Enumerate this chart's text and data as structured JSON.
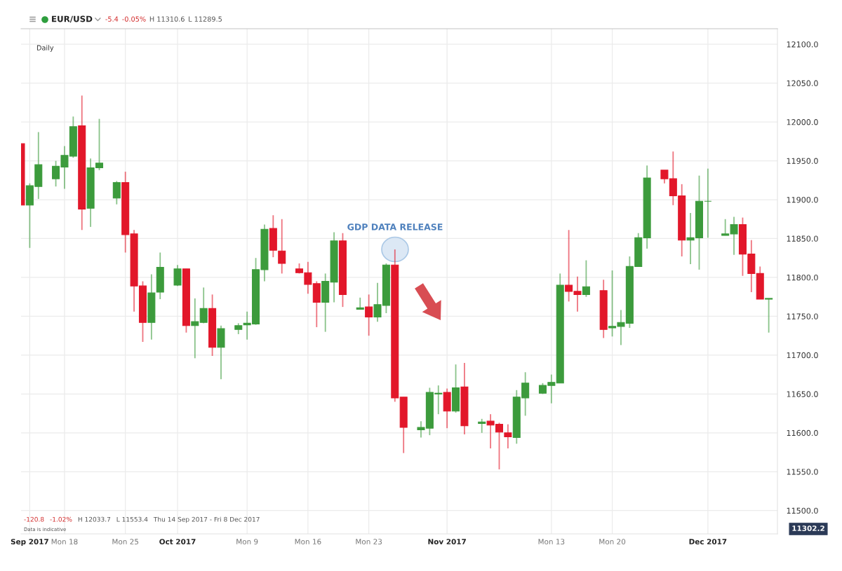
{
  "chart_data": {
    "type": "candlestick",
    "title": "EUR/USD",
    "subtitle": "Daily",
    "x": [
      "2017-09-13",
      "2017-09-14",
      "2017-09-15",
      "2017-09-17",
      "2017-09-18",
      "2017-09-19",
      "2017-09-20",
      "2017-09-21",
      "2017-09-22",
      "2017-09-24",
      "2017-09-25",
      "2017-09-26",
      "2017-09-27",
      "2017-09-28",
      "2017-09-29",
      "2017-10-01",
      "2017-10-02",
      "2017-10-03",
      "2017-10-04",
      "2017-10-05",
      "2017-10-06",
      "2017-10-08",
      "2017-10-09",
      "2017-10-10",
      "2017-10-11",
      "2017-10-12",
      "2017-10-13",
      "2017-10-15",
      "2017-10-16",
      "2017-10-17",
      "2017-10-18",
      "2017-10-19",
      "2017-10-20",
      "2017-10-22",
      "2017-10-23",
      "2017-10-24",
      "2017-10-25",
      "2017-10-26",
      "2017-10-27",
      "2017-10-29",
      "2017-10-30",
      "2017-10-31",
      "2017-11-01",
      "2017-11-02",
      "2017-11-03",
      "2017-11-05",
      "2017-11-06",
      "2017-11-07",
      "2017-11-08",
      "2017-11-09",
      "2017-11-10",
      "2017-11-12",
      "2017-11-13",
      "2017-11-14",
      "2017-11-15",
      "2017-11-16",
      "2017-11-17",
      "2017-11-19",
      "2017-11-20",
      "2017-11-21",
      "2017-11-22",
      "2017-11-23",
      "2017-11-24",
      "2017-11-26",
      "2017-11-27",
      "2017-11-28",
      "2017-11-29",
      "2017-11-30",
      "2017-12-01",
      "2017-12-03",
      "2017-12-04",
      "2017-12-05",
      "2017-12-06",
      "2017-12-07",
      "2017-12-08"
    ],
    "ohlc": [
      [
        11972,
        11972,
        11893,
        11893
      ],
      [
        11893,
        11921,
        11838,
        11918
      ],
      [
        11917,
        11987,
        11901,
        11945
      ],
      [
        11927,
        11950,
        11917,
        11943
      ],
      [
        11942,
        11969,
        11914,
        11957
      ],
      [
        11956,
        12007,
        11954,
        11994
      ],
      [
        11995,
        12034,
        11861,
        11888
      ],
      [
        11889,
        11953,
        11865,
        11941
      ],
      [
        11941,
        12004,
        11938,
        11947
      ],
      [
        11902,
        11924,
        11894,
        11922
      ],
      [
        11922,
        11936,
        11832,
        11855
      ],
      [
        11856,
        11861,
        11756,
        11789
      ],
      [
        11789,
        11795,
        11717,
        11742
      ],
      [
        11742,
        11804,
        11720,
        11780
      ],
      [
        11781,
        11832,
        11772,
        11813
      ],
      [
        11790,
        11816,
        11789,
        11811
      ],
      [
        11811,
        11811,
        11729,
        11738
      ],
      [
        11738,
        11773,
        11696,
        11743
      ],
      [
        11742,
        11787,
        11741,
        11760
      ],
      [
        11760,
        11778,
        11699,
        11710
      ],
      [
        11710,
        11738,
        11669,
        11734
      ],
      [
        11733,
        11741,
        11727,
        11738
      ],
      [
        11739,
        11756,
        11720,
        11741
      ],
      [
        11740,
        11825,
        11739,
        11810
      ],
      [
        11810,
        11868,
        11795,
        11862
      ],
      [
        11863,
        11880,
        11826,
        11835
      ],
      [
        11834,
        11875,
        11805,
        11818
      ],
      [
        11811,
        11818,
        11805,
        11806
      ],
      [
        11806,
        11820,
        11779,
        11791
      ],
      [
        11792,
        11795,
        11736,
        11768
      ],
      [
        11768,
        11805,
        11730,
        11795
      ],
      [
        11794,
        11858,
        11768,
        11847
      ],
      [
        11847,
        11857,
        11762,
        11778
      ],
      [
        11759,
        11774,
        11759,
        11761
      ],
      [
        11762,
        11778,
        11725,
        11749
      ],
      [
        11749,
        11793,
        11743,
        11765
      ],
      [
        11764,
        11818,
        11754,
        11816
      ],
      [
        11816,
        11836,
        11640,
        11645
      ],
      [
        11646,
        11646,
        11574,
        11607
      ],
      [
        11604,
        11615,
        11594,
        11607
      ],
      [
        11606,
        11658,
        11597,
        11652
      ],
      [
        11650,
        11661,
        11624,
        11651
      ],
      [
        11652,
        11657,
        11606,
        11628
      ],
      [
        11628,
        11688,
        11626,
        11658
      ],
      [
        11659,
        11690,
        11598,
        11609
      ],
      [
        11612,
        11618,
        11600,
        11614
      ],
      [
        11615,
        11624,
        11580,
        11610
      ],
      [
        11611,
        11613,
        11553,
        11601
      ],
      [
        11600,
        11611,
        11580,
        11595
      ],
      [
        11594,
        11655,
        11586,
        11646
      ],
      [
        11645,
        11678,
        11622,
        11664
      ],
      [
        11651,
        11664,
        11650,
        11661
      ],
      [
        11661,
        11675,
        11638,
        11665
      ],
      [
        11664,
        11805,
        11664,
        11790
      ],
      [
        11790,
        11861,
        11769,
        11782
      ],
      [
        11782,
        11801,
        11756,
        11778
      ],
      [
        11778,
        11822,
        11775,
        11788
      ],
      [
        11783,
        11797,
        11722,
        11733
      ],
      [
        11735,
        11809,
        11724,
        11737
      ],
      [
        11737,
        11758,
        11713,
        11742
      ],
      [
        11741,
        11827,
        11735,
        11814
      ],
      [
        11814,
        11857,
        11814,
        11851
      ],
      [
        11851,
        11944,
        11837,
        11928
      ],
      [
        11938,
        11938,
        11921,
        11927
      ],
      [
        11927,
        11962,
        11893,
        11905
      ],
      [
        11905,
        11920,
        11827,
        11848
      ],
      [
        11848,
        11883,
        11817,
        11851
      ],
      [
        11851,
        11931,
        11810,
        11898
      ],
      [
        11898,
        11940,
        11851,
        11898
      ],
      [
        11854,
        11875,
        11854,
        11856
      ],
      [
        11856,
        11878,
        11829,
        11868
      ],
      [
        11868,
        11877,
        11802,
        11830
      ],
      [
        11830,
        11848,
        11781,
        11805
      ],
      [
        11805,
        11814,
        11772,
        11772
      ],
      [
        11772,
        11773,
        11729,
        11773
      ]
    ],
    "colors": [
      "#e2172a",
      "#3c9b3c",
      "#3c9b3c",
      "#3c9b3c",
      "#3c9b3c",
      "#3c9b3c",
      "#e2172a",
      "#3c9b3c",
      "#3c9b3c",
      "#3c9b3c",
      "#e2172a",
      "#e2172a",
      "#e2172a",
      "#3c9b3c",
      "#3c9b3c",
      "#3c9b3c",
      "#e2172a",
      "#3c9b3c",
      "#3c9b3c",
      "#e2172a",
      "#3c9b3c",
      "#3c9b3c",
      "#3c9b3c",
      "#3c9b3c",
      "#3c9b3c",
      "#e2172a",
      "#e2172a",
      "#e2172a",
      "#e2172a",
      "#e2172a",
      "#3c9b3c",
      "#3c9b3c",
      "#e2172a",
      "#3c9b3c",
      "#e2172a",
      "#3c9b3c",
      "#3c9b3c",
      "#e2172a",
      "#e2172a",
      "#3c9b3c",
      "#3c9b3c",
      "#3c9b3c",
      "#e2172a",
      "#3c9b3c",
      "#e2172a",
      "#3c9b3c",
      "#e2172a",
      "#e2172a",
      "#e2172a",
      "#3c9b3c",
      "#3c9b3c",
      "#3c9b3c",
      "#3c9b3c",
      "#3c9b3c",
      "#e2172a",
      "#e2172a",
      "#3c9b3c",
      "#e2172a",
      "#3c9b3c",
      "#3c9b3c",
      "#3c9b3c",
      "#3c9b3c",
      "#3c9b3c",
      "#e2172a",
      "#e2172a",
      "#e2172a",
      "#3c9b3c",
      "#3c9b3c",
      "#3c9b3c",
      "#3c9b3c",
      "#3c9b3c",
      "#e2172a",
      "#e2172a",
      "#e2172a",
      "#3c9b3c"
    ],
    "xlim": [
      "2017-09-13T00:00",
      "2017-12-09"
    ],
    "xticks": [
      {
        "value": "2017-09-14",
        "label": "Sep 2017"
      },
      {
        "value": "2017-09-18",
        "label": "Mon 18"
      },
      {
        "value": "2017-09-25",
        "label": "Mon 25"
      },
      {
        "value": "2017-10-01",
        "label": "Oct 2017"
      },
      {
        "value": "2017-10-09",
        "label": "Mon 9"
      },
      {
        "value": "2017-10-16",
        "label": "Mon 16"
      },
      {
        "value": "2017-10-23",
        "label": "Mon 23"
      },
      {
        "value": "2017-11-01",
        "label": "Nov 2017"
      },
      {
        "value": "2017-11-13",
        "label": "Mon 13"
      },
      {
        "value": "2017-11-20",
        "label": "Mon 20"
      },
      {
        "value": "2017-12-01",
        "label": "Dec 2017"
      }
    ],
    "ylim": [
      11470,
      12120
    ],
    "yticks": [
      {
        "value": 11500,
        "label": "11500.0"
      },
      {
        "value": 11550,
        "label": "11550.0"
      },
      {
        "value": 11600,
        "label": "11600.0"
      },
      {
        "value": 11650,
        "label": "11650.0"
      },
      {
        "value": 11700,
        "label": "11700.0"
      },
      {
        "value": 11750,
        "label": "11750.0"
      },
      {
        "value": 11800,
        "label": "11800.0"
      },
      {
        "value": 11850,
        "label": "11850.0"
      },
      {
        "value": 11900,
        "label": "11900.0"
      },
      {
        "value": 11950,
        "label": "11950.0"
      },
      {
        "value": 12000,
        "label": "12000.0"
      },
      {
        "value": 12050,
        "label": "12050.0"
      },
      {
        "value": 12100,
        "label": "12100.0"
      }
    ],
    "grid": true,
    "annotations": [
      "-5.4",
      "-0.05%",
      "H 11310.6",
      "L 11289.5",
      "-120.8",
      "-1.02%",
      "H 12033.7",
      "L 11553.4",
      "Thu 14 Sep 2017 - Fri 8 Dec 2017",
      "Data is indicative",
      "11302.2",
      "GDP DATA RELEASE"
    ]
  }
}
